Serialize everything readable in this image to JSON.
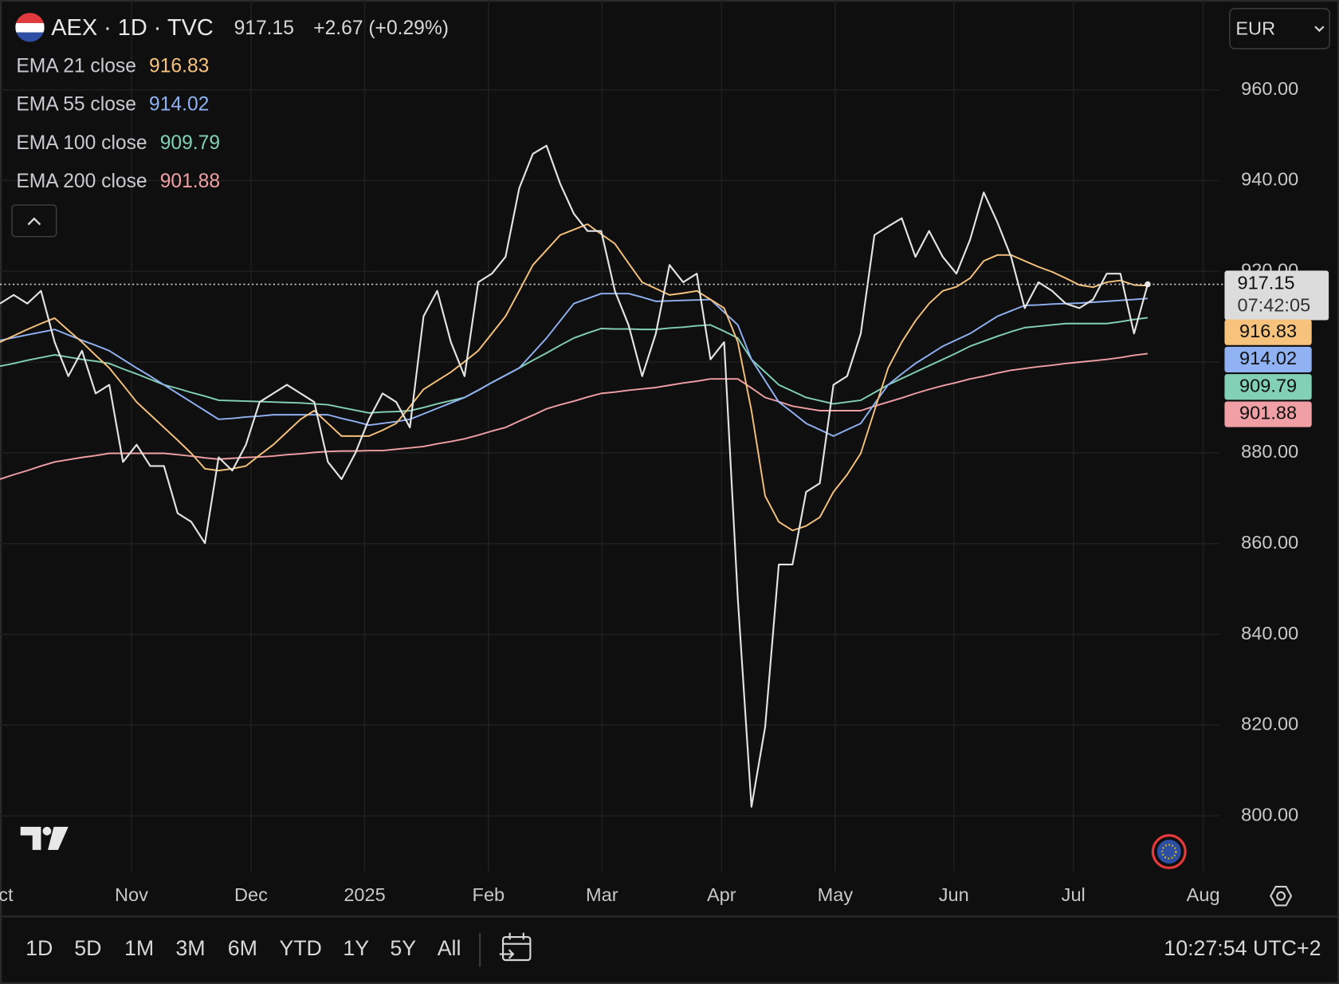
{
  "header": {
    "change": "+2.67 (+0.29%)",
    "currency": "EUR"
  },
  "chart_data": {
    "type": "line",
    "series": [
      {
        "name": "AEX · 1D · TVC",
        "color": "#e4e4e4",
        "values": [
          912.9,
          914.8,
          912.9,
          915.7,
          904.4,
          896.9,
          902.5,
          893.1,
          895,
          878,
          881.8,
          877.1,
          877.1,
          866.7,
          864.8,
          860.1,
          879,
          876.1,
          881.8,
          891.2,
          893.1,
          895,
          893.1,
          891.2,
          878,
          874.2,
          879.9,
          887.4,
          893.1,
          891.2,
          885.6,
          910.1,
          915.7,
          904.4,
          896.9,
          917.6,
          919.5,
          923.2,
          938.3,
          945.9,
          947.7,
          939.3,
          932.7,
          928.9,
          928.9,
          915.7,
          908.2,
          896.9,
          906.3,
          921.4,
          917.6,
          919.5,
          900.6,
          904.4,
          847.9,
          802,
          819.6,
          855.4,
          855.4,
          871.4,
          873.3,
          895,
          896.9,
          906.3,
          928,
          929.9,
          931.7,
          923.2,
          928.9,
          923.2,
          919.5,
          927,
          937.4,
          930.8,
          923.2,
          911.9,
          917.6,
          915.7,
          912.9,
          911.9,
          913.8,
          919.5,
          919.5,
          906.3,
          917.15
        ]
      },
      {
        "name": "EMA 21 close",
        "color": "#f6c27c",
        "values": [
          904.4,
          905.8,
          907.2,
          908.5,
          909.7,
          907,
          904.4,
          901.5,
          898.7,
          895,
          891.2,
          888.4,
          885.6,
          882.8,
          879.9,
          876.5,
          876.1,
          876.5,
          877.1,
          879.5,
          881.8,
          884.6,
          887.4,
          889.3,
          886.5,
          883.7,
          883.7,
          883.7,
          885,
          886.5,
          890.2,
          894,
          895.9,
          897.8,
          900.1,
          902.5,
          906.3,
          910.1,
          915.7,
          921.4,
          924.7,
          928,
          929.2,
          930.4,
          928.2,
          926.1,
          921.8,
          917.6,
          916.2,
          914.8,
          915.2,
          915.7,
          913.8,
          911.9,
          904.4,
          889.3,
          870.5,
          864.8,
          862.9,
          863.9,
          865.8,
          871.4,
          875.2,
          879.9,
          889.3,
          898.7,
          904.4,
          909.1,
          912.9,
          915.7,
          916.6,
          918.5,
          922.3,
          923.6,
          923.6,
          922.3,
          921,
          919.9,
          918.5,
          917,
          916.5,
          917.6,
          918,
          917,
          916.83
        ]
      },
      {
        "name": "EMA 55 close",
        "color": "#90b1f2",
        "values": [
          904.8,
          905.4,
          906,
          906.6,
          907.2,
          906,
          904.8,
          903.7,
          902.5,
          900.6,
          898.7,
          896.9,
          895,
          893.1,
          891.2,
          889.3,
          887.4,
          887.6,
          887.9,
          888.1,
          888.4,
          888.4,
          888.4,
          888.4,
          888.4,
          887.6,
          886.9,
          886.1,
          886.5,
          886.9,
          887.4,
          888.6,
          889.8,
          891,
          892.2,
          893.8,
          895.5,
          897.1,
          898.7,
          902,
          905.3,
          909.1,
          912.9,
          914,
          915.1,
          915.1,
          915.1,
          914.3,
          913.4,
          913.5,
          913.6,
          913.7,
          913.8,
          911,
          908.2,
          900.6,
          895.9,
          891.2,
          888.9,
          886.5,
          885.1,
          883.7,
          885.1,
          886.5,
          890.8,
          895,
          897.4,
          899.7,
          901.6,
          903.5,
          904.9,
          906.3,
          908.2,
          910.1,
          911.3,
          912.5,
          912.6,
          912.8,
          912.9,
          913,
          913.2,
          913.4,
          913.6,
          913.8,
          914.02
        ]
      },
      {
        "name": "EMA 100 close",
        "color": "#82d0b5",
        "values": [
          899.1,
          899.7,
          900.4,
          901,
          901.6,
          901.1,
          900.6,
          900.2,
          899.7,
          898.5,
          897.4,
          896.2,
          895,
          894.2,
          893.3,
          892.5,
          891.6,
          891.5,
          891.4,
          891.3,
          891.2,
          891.1,
          891,
          890.8,
          890.6,
          890,
          889.4,
          888.8,
          889,
          889.1,
          889.3,
          890,
          890.8,
          891.5,
          892.2,
          893.8,
          895.5,
          897.1,
          898.7,
          900.4,
          902,
          903.7,
          905.3,
          906.4,
          907.4,
          907.3,
          907.3,
          907.2,
          907.2,
          907.5,
          907.7,
          908,
          908.2,
          906.8,
          905.3,
          900.6,
          897.8,
          895,
          893.6,
          892.2,
          891.5,
          890.8,
          891.2,
          891.6,
          893.3,
          895,
          896.4,
          897.8,
          899.2,
          900.6,
          902,
          903.5,
          904.6,
          905.7,
          906.7,
          907.6,
          907.9,
          908.2,
          908.5,
          908.5,
          908.5,
          908.5,
          908.9,
          909.4,
          909.79
        ]
      },
      {
        "name": "EMA 200 close",
        "color": "#f0a0a5",
        "values": [
          874.2,
          875.2,
          876.1,
          877.1,
          878,
          878.5,
          879,
          879.4,
          879.9,
          879.9,
          879.9,
          879.9,
          879.9,
          879.6,
          879.3,
          878.9,
          878.6,
          878.8,
          879,
          879.1,
          879.3,
          879.6,
          879.8,
          880.1,
          880.3,
          880.4,
          880.4,
          880.5,
          880.5,
          880.8,
          881.1,
          881.4,
          882,
          882.5,
          883.1,
          883.9,
          884.8,
          885.6,
          887,
          888.3,
          889.7,
          890.6,
          891.4,
          892.3,
          893.1,
          893.4,
          893.8,
          894.1,
          894.4,
          894.9,
          895.4,
          895.8,
          896.3,
          896.3,
          896.3,
          894.3,
          892.2,
          891.3,
          890.3,
          889.8,
          889.3,
          889.3,
          889.3,
          889.3,
          890.3,
          891.2,
          892.1,
          893.1,
          894,
          894.8,
          895.5,
          896.3,
          896.9,
          897.6,
          898.2,
          898.6,
          899,
          899.3,
          899.7,
          900,
          900.3,
          900.6,
          901,
          901.5,
          901.88
        ]
      }
    ],
    "xlim": [
      0,
      89.25
    ],
    "xticks": [
      {
        "value": -0.1,
        "label": "Oct"
      },
      {
        "value": 9.625,
        "label": "Nov"
      },
      {
        "value": 18.375,
        "label": "Dec"
      },
      {
        "value": 26.69,
        "label": "2025"
      },
      {
        "value": 35.75,
        "label": "Feb"
      },
      {
        "value": 44.06,
        "label": "Mar"
      },
      {
        "value": 52.81,
        "label": "Apr"
      },
      {
        "value": 61.125,
        "label": "May"
      },
      {
        "value": 69.81,
        "label": "Jun"
      },
      {
        "value": 78.56,
        "label": "Jul"
      },
      {
        "value": 88.06,
        "label": "Aug"
      }
    ],
    "ylim": [
      787.8,
      979.8
    ],
    "yticks": [
      {
        "value": 800,
        "label": "800.00"
      },
      {
        "value": 820,
        "label": "820.00"
      },
      {
        "value": 840,
        "label": "840.00"
      },
      {
        "value": 860,
        "label": "860.00"
      },
      {
        "value": 880,
        "label": "880.00"
      },
      {
        "value": 900,
        "label": "900.00"
      },
      {
        "value": 920,
        "label": "920.00"
      },
      {
        "value": 940,
        "label": "940.00"
      },
      {
        "value": 960,
        "label": "960.00"
      }
    ],
    "grid": true,
    "countdown": "07:42:05"
  },
  "toolbar": {
    "ranges": [
      "1D",
      "5D",
      "1M",
      "3M",
      "6M",
      "YTD",
      "1Y",
      "5Y",
      "All"
    ],
    "time": "10:27:54 UTC+2"
  }
}
